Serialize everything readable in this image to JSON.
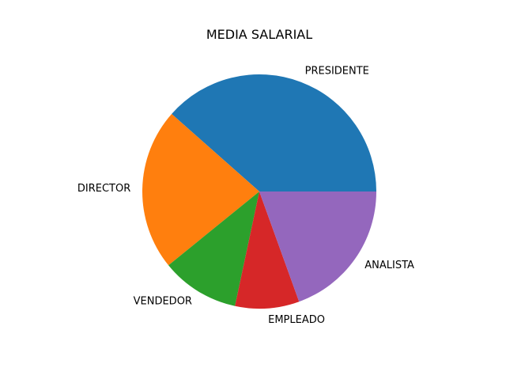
{
  "chart_data": {
    "type": "pie",
    "title": "MEDIA SALARIAL",
    "categories": [
      "PRESIDENTE",
      "DIRECTOR",
      "VENDEDOR",
      "EMPLEADO",
      "ANALISTA"
    ],
    "values": [
      0.3848,
      0.2237,
      0.1081,
      0.0886,
      0.1948
    ],
    "colors": [
      "#1f77b4",
      "#ff7f0e",
      "#2ca02c",
      "#d62728",
      "#9467bd"
    ],
    "start_angle_deg": 0,
    "direction": "counterclockwise",
    "legend": "none"
  }
}
